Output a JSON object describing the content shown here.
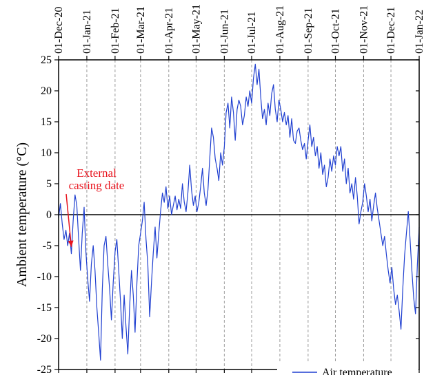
{
  "chart_data": {
    "type": "line",
    "title": "",
    "xlabel": "",
    "ylabel": "Ambient temperature (°C)",
    "ylim": [
      -25,
      25
    ],
    "yticks": [
      25,
      20,
      15,
      10,
      5,
      0,
      -5,
      -10,
      -15,
      -20,
      -25
    ],
    "xlim": [
      "2020-12-01",
      "2022-01-01"
    ],
    "xticks": [
      {
        "date": "2020-12-01",
        "label": "01-Dec-20"
      },
      {
        "date": "2021-01-01",
        "label": "01-Jan-21"
      },
      {
        "date": "2021-02-01",
        "label": "01-Feb-21"
      },
      {
        "date": "2021-03-01",
        "label": "01-Mar-21"
      },
      {
        "date": "2021-04-01",
        "label": "01-Apr-21"
      },
      {
        "date": "2021-05-01",
        "label": "01-May-21"
      },
      {
        "date": "2021-06-01",
        "label": "01-Jun-21"
      },
      {
        "date": "2021-07-01",
        "label": "01-Jul-21"
      },
      {
        "date": "2021-08-01",
        "label": "01-Aug-21"
      },
      {
        "date": "2021-09-01",
        "label": "01-Sep-21"
      },
      {
        "date": "2021-10-01",
        "label": "01-Oct-21"
      },
      {
        "date": "2021-11-01",
        "label": "01-Nov-21"
      },
      {
        "date": "2021-12-01",
        "label": "01-Dec-21"
      },
      {
        "date": "2022-01-01",
        "label": "01-Jan-22"
      }
    ],
    "grid": "vertical-dashed",
    "zero_line": true,
    "legend": {
      "position": "bottom-right"
    },
    "series": [
      {
        "name": "Air temperature",
        "color": "#1f3fd0",
        "points": [
          [
            "2020-12-01",
            -0.5
          ],
          [
            "2020-12-03",
            1.8
          ],
          [
            "2020-12-05",
            -1.5
          ],
          [
            "2020-12-07",
            -4.0
          ],
          [
            "2020-12-09",
            -2.5
          ],
          [
            "2020-12-11",
            -5.0
          ],
          [
            "2020-12-13",
            -3.0
          ],
          [
            "2020-12-15",
            -6.3
          ],
          [
            "2020-12-17",
            -1.0
          ],
          [
            "2020-12-19",
            3.2
          ],
          [
            "2020-12-21",
            1.5
          ],
          [
            "2020-12-23",
            -4.0
          ],
          [
            "2020-12-25",
            -9.0
          ],
          [
            "2020-12-27",
            -3.0
          ],
          [
            "2020-12-29",
            1.2
          ],
          [
            "2020-12-31",
            -6.0
          ],
          [
            "2021-01-02",
            -10.5
          ],
          [
            "2021-01-04",
            -14.0
          ],
          [
            "2021-01-06",
            -8.0
          ],
          [
            "2021-01-08",
            -5.0
          ],
          [
            "2021-01-10",
            -9.0
          ],
          [
            "2021-01-12",
            -15.0
          ],
          [
            "2021-01-14",
            -19.0
          ],
          [
            "2021-01-16",
            -23.5
          ],
          [
            "2021-01-18",
            -12.0
          ],
          [
            "2021-01-20",
            -5.0
          ],
          [
            "2021-01-22",
            -3.5
          ],
          [
            "2021-01-24",
            -8.0
          ],
          [
            "2021-01-26",
            -12.0
          ],
          [
            "2021-01-28",
            -17.0
          ],
          [
            "2021-01-30",
            -11.0
          ],
          [
            "2021-02-01",
            -6.0
          ],
          [
            "2021-02-03",
            -4.0
          ],
          [
            "2021-02-05",
            -9.0
          ],
          [
            "2021-02-07",
            -14.0
          ],
          [
            "2021-02-09",
            -20.0
          ],
          [
            "2021-02-11",
            -13.0
          ],
          [
            "2021-02-13",
            -18.0
          ],
          [
            "2021-02-15",
            -22.5
          ],
          [
            "2021-02-17",
            -15.0
          ],
          [
            "2021-02-19",
            -9.0
          ],
          [
            "2021-02-21",
            -13.0
          ],
          [
            "2021-02-23",
            -19.0
          ],
          [
            "2021-02-25",
            -11.0
          ],
          [
            "2021-02-27",
            -5.0
          ],
          [
            "2021-03-01",
            -3.0
          ],
          [
            "2021-03-03",
            -1.0
          ],
          [
            "2021-03-05",
            2.0
          ],
          [
            "2021-03-07",
            -4.0
          ],
          [
            "2021-03-09",
            -8.0
          ],
          [
            "2021-03-11",
            -16.5
          ],
          [
            "2021-03-13",
            -11.0
          ],
          [
            "2021-03-15",
            -6.0
          ],
          [
            "2021-03-17",
            -2.0
          ],
          [
            "2021-03-19",
            -7.0
          ],
          [
            "2021-03-21",
            -3.0
          ],
          [
            "2021-03-23",
            0.5
          ],
          [
            "2021-03-25",
            3.5
          ],
          [
            "2021-03-27",
            2.0
          ],
          [
            "2021-03-29",
            4.5
          ],
          [
            "2021-03-31",
            1.0
          ],
          [
            "2021-04-02",
            3.0
          ],
          [
            "2021-04-04",
            0.0
          ],
          [
            "2021-04-06",
            1.5
          ],
          [
            "2021-04-08",
            3.0
          ],
          [
            "2021-04-10",
            0.8
          ],
          [
            "2021-04-12",
            2.5
          ],
          [
            "2021-04-14",
            1.0
          ],
          [
            "2021-04-16",
            5.0
          ],
          [
            "2021-04-18",
            2.0
          ],
          [
            "2021-04-20",
            0.5
          ],
          [
            "2021-04-22",
            3.5
          ],
          [
            "2021-04-24",
            8.0
          ],
          [
            "2021-04-26",
            4.0
          ],
          [
            "2021-04-28",
            1.5
          ],
          [
            "2021-04-30",
            3.0
          ],
          [
            "2021-05-02",
            0.5
          ],
          [
            "2021-05-04",
            2.0
          ],
          [
            "2021-05-06",
            4.5
          ],
          [
            "2021-05-08",
            7.5
          ],
          [
            "2021-05-10",
            3.5
          ],
          [
            "2021-05-12",
            1.5
          ],
          [
            "2021-05-14",
            4.0
          ],
          [
            "2021-05-16",
            9.0
          ],
          [
            "2021-05-18",
            14.0
          ],
          [
            "2021-05-20",
            12.5
          ],
          [
            "2021-05-22",
            9.0
          ],
          [
            "2021-05-24",
            7.5
          ],
          [
            "2021-05-26",
            5.5
          ],
          [
            "2021-05-28",
            10.0
          ],
          [
            "2021-05-30",
            8.0
          ],
          [
            "2021-06-01",
            11.0
          ],
          [
            "2021-06-03",
            16.5
          ],
          [
            "2021-06-05",
            18.0
          ],
          [
            "2021-06-07",
            14.0
          ],
          [
            "2021-06-09",
            19.0
          ],
          [
            "2021-06-11",
            16.5
          ],
          [
            "2021-06-13",
            12.0
          ],
          [
            "2021-06-15",
            17.0
          ],
          [
            "2021-06-17",
            18.5
          ],
          [
            "2021-06-19",
            17.5
          ],
          [
            "2021-06-21",
            14.5
          ],
          [
            "2021-06-23",
            16.0
          ],
          [
            "2021-06-25",
            19.0
          ],
          [
            "2021-06-27",
            17.5
          ],
          [
            "2021-06-29",
            20.0
          ],
          [
            "2021-07-01",
            18.0
          ],
          [
            "2021-07-03",
            22.0
          ],
          [
            "2021-07-05",
            24.3
          ],
          [
            "2021-07-07",
            21.0
          ],
          [
            "2021-07-09",
            23.5
          ],
          [
            "2021-07-11",
            19.0
          ],
          [
            "2021-07-13",
            15.5
          ],
          [
            "2021-07-15",
            17.0
          ],
          [
            "2021-07-17",
            14.5
          ],
          [
            "2021-07-19",
            18.0
          ],
          [
            "2021-07-21",
            16.0
          ],
          [
            "2021-07-23",
            19.5
          ],
          [
            "2021-07-25",
            21.0
          ],
          [
            "2021-07-27",
            17.0
          ],
          [
            "2021-07-29",
            15.0
          ],
          [
            "2021-07-31",
            18.5
          ],
          [
            "2021-08-02",
            17.0
          ],
          [
            "2021-08-04",
            15.0
          ],
          [
            "2021-08-06",
            16.5
          ],
          [
            "2021-08-08",
            14.5
          ],
          [
            "2021-08-10",
            16.0
          ],
          [
            "2021-08-12",
            12.5
          ],
          [
            "2021-08-14",
            15.5
          ],
          [
            "2021-08-16",
            12.0
          ],
          [
            "2021-08-18",
            11.5
          ],
          [
            "2021-08-20",
            13.5
          ],
          [
            "2021-08-22",
            14.0
          ],
          [
            "2021-08-24",
            12.0
          ],
          [
            "2021-08-26",
            10.5
          ],
          [
            "2021-08-28",
            11.5
          ],
          [
            "2021-08-30",
            9.0
          ],
          [
            "2021-09-01",
            12.0
          ],
          [
            "2021-09-03",
            14.5
          ],
          [
            "2021-09-05",
            11.0
          ],
          [
            "2021-09-07",
            12.5
          ],
          [
            "2021-09-09",
            9.5
          ],
          [
            "2021-09-11",
            11.0
          ],
          [
            "2021-09-13",
            7.5
          ],
          [
            "2021-09-15",
            10.0
          ],
          [
            "2021-09-17",
            6.5
          ],
          [
            "2021-09-19",
            8.0
          ],
          [
            "2021-09-21",
            4.5
          ],
          [
            "2021-09-23",
            6.0
          ],
          [
            "2021-09-25",
            9.0
          ],
          [
            "2021-09-27",
            7.0
          ],
          [
            "2021-09-29",
            9.5
          ],
          [
            "2021-10-01",
            8.0
          ],
          [
            "2021-10-03",
            11.0
          ],
          [
            "2021-10-05",
            9.5
          ],
          [
            "2021-10-07",
            11.0
          ],
          [
            "2021-10-09",
            7.0
          ],
          [
            "2021-10-11",
            9.0
          ],
          [
            "2021-10-13",
            5.0
          ],
          [
            "2021-10-15",
            7.5
          ],
          [
            "2021-10-17",
            3.5
          ],
          [
            "2021-10-19",
            5.0
          ],
          [
            "2021-10-21",
            2.5
          ],
          [
            "2021-10-23",
            6.0
          ],
          [
            "2021-10-25",
            3.0
          ],
          [
            "2021-10-27",
            -1.5
          ],
          [
            "2021-10-29",
            0.5
          ],
          [
            "2021-10-31",
            2.0
          ],
          [
            "2021-11-02",
            5.0
          ],
          [
            "2021-11-04",
            3.0
          ],
          [
            "2021-11-06",
            0.5
          ],
          [
            "2021-11-08",
            2.5
          ],
          [
            "2021-11-10",
            -1.0
          ],
          [
            "2021-11-12",
            1.5
          ],
          [
            "2021-11-14",
            3.5
          ],
          [
            "2021-11-16",
            1.0
          ],
          [
            "2021-11-18",
            -1.0
          ],
          [
            "2021-11-20",
            -3.0
          ],
          [
            "2021-11-22",
            -5.0
          ],
          [
            "2021-11-24",
            -3.5
          ],
          [
            "2021-11-26",
            -6.5
          ],
          [
            "2021-11-28",
            -9.0
          ],
          [
            "2021-11-30",
            -11.0
          ],
          [
            "2021-12-02",
            -8.5
          ],
          [
            "2021-12-04",
            -12.0
          ],
          [
            "2021-12-06",
            -14.5
          ],
          [
            "2021-12-08",
            -13.0
          ],
          [
            "2021-12-10",
            -15.5
          ],
          [
            "2021-12-12",
            -18.5
          ],
          [
            "2021-12-14",
            -12.0
          ],
          [
            "2021-12-16",
            -6.5
          ],
          [
            "2021-12-18",
            -3.0
          ],
          [
            "2021-12-20",
            0.5
          ],
          [
            "2021-12-22",
            -4.0
          ],
          [
            "2021-12-24",
            -9.0
          ],
          [
            "2021-12-26",
            -13.5
          ],
          [
            "2021-12-28",
            -16.0
          ],
          [
            "2021-12-30",
            -8.0
          ],
          [
            "2022-01-01",
            -2.0
          ]
        ]
      }
    ],
    "annotations": [
      {
        "text": [
          "External",
          "casting date"
        ],
        "color": "#e8141e",
        "arrow_to": [
          "2020-12-15",
          -5.2
        ]
      }
    ]
  }
}
